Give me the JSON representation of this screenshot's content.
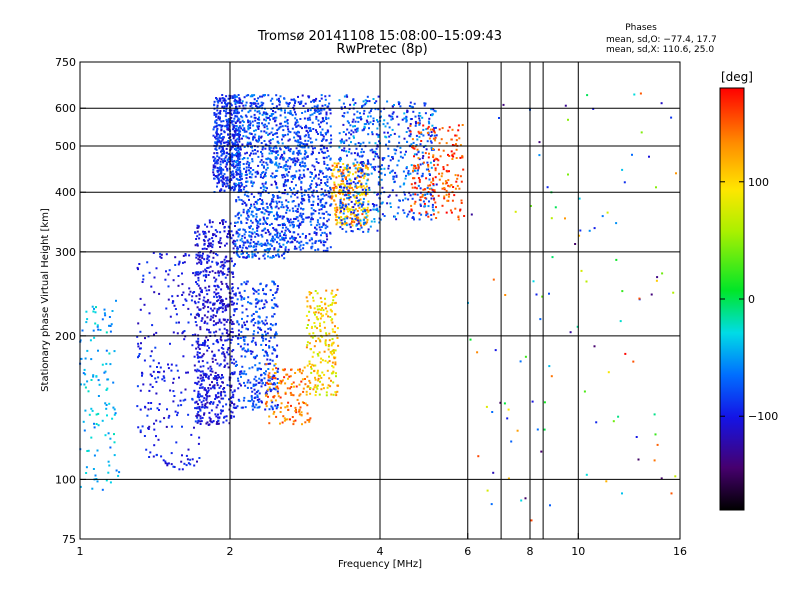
{
  "chart_data": {
    "type": "scatter",
    "title": "Tromsø 20141108 15:08:00–15:09:43",
    "subtitle": "RwPretec (8p)",
    "xlabel": "Frequency [MHz]",
    "ylabel": "Stationary phase Virtual Height [km]",
    "x_scale": "log",
    "y_scale": "log",
    "xlim": [
      1,
      16
    ],
    "ylim": [
      75,
      750
    ],
    "x_ticks": [
      1,
      2,
      4,
      6,
      8,
      10,
      16
    ],
    "x_tick_labels": [
      "1",
      "2",
      "4",
      "6",
      "8",
      "10",
      "16"
    ],
    "y_ticks": [
      75,
      100,
      200,
      300,
      400,
      500,
      600,
      750
    ],
    "y_tick_labels": [
      "75",
      "100",
      "200",
      "300",
      "400",
      "500",
      "600",
      "750"
    ],
    "x_grid": [
      2,
      4,
      6,
      7,
      8,
      8.5,
      10
    ],
    "y_grid": [
      100,
      200,
      300,
      400,
      500,
      600
    ],
    "legend": {
      "title": "Phases",
      "lines": [
        "mean, sd,O: −77.4, 17.7",
        "mean, sd,X: 110.6, 25.0"
      ],
      "placement": "top-right"
    },
    "colorbar": {
      "label": "[deg]",
      "range": [
        -180,
        180
      ],
      "ticks": [
        100,
        0,
        -100
      ],
      "tick_labels": [
        "100",
        "0",
        "−100"
      ],
      "placement": "right"
    },
    "point_clusters": [
      {
        "x_range": [
          1.0,
          1.2
        ],
        "y_range": [
          95,
          240
        ],
        "n": 120,
        "phase": [
          -70,
          -20
        ]
      },
      {
        "x_range": [
          1.3,
          1.75
        ],
        "y_range": [
          105,
          300
        ],
        "n": 260,
        "phase": [
          -120,
          -80
        ]
      },
      {
        "x_range": [
          1.7,
          2.05
        ],
        "y_range": [
          130,
          350
        ],
        "n": 700,
        "phase": [
          -125,
          -85
        ]
      },
      {
        "x_range": [
          1.85,
          2.1
        ],
        "y_range": [
          400,
          640
        ],
        "n": 500,
        "phase": [
          -115,
          -70
        ]
      },
      {
        "x_range": [
          2.05,
          2.65
        ],
        "y_range": [
          290,
          640
        ],
        "n": 900,
        "phase": [
          -110,
          -50
        ]
      },
      {
        "x_range": [
          2.05,
          2.5
        ],
        "y_range": [
          140,
          260
        ],
        "n": 350,
        "phase": [
          -110,
          -60
        ]
      },
      {
        "x_range": [
          2.35,
          2.9
        ],
        "y_range": [
          130,
          175
        ],
        "n": 140,
        "phase": [
          110,
          170
        ]
      },
      {
        "x_range": [
          2.85,
          3.3
        ],
        "y_range": [
          150,
          250
        ],
        "n": 220,
        "phase": [
          60,
          140
        ]
      },
      {
        "x_range": [
          2.65,
          3.2
        ],
        "y_range": [
          300,
          640
        ],
        "n": 550,
        "phase": [
          -110,
          -60
        ]
      },
      {
        "x_range": [
          3.2,
          3.8
        ],
        "y_range": [
          340,
          460
        ],
        "n": 260,
        "phase": [
          80,
          160
        ]
      },
      {
        "x_range": [
          3.3,
          4.0
        ],
        "y_range": [
          330,
          640
        ],
        "n": 350,
        "phase": [
          -110,
          -40
        ]
      },
      {
        "x_range": [
          4.0,
          5.2
        ],
        "y_range": [
          350,
          620
        ],
        "n": 300,
        "phase": [
          -115,
          -40
        ]
      },
      {
        "x_range": [
          4.6,
          5.9
        ],
        "y_range": [
          350,
          560
        ],
        "n": 200,
        "phase": [
          130,
          180
        ]
      },
      {
        "x_range": [
          6.0,
          16.0
        ],
        "y_range": [
          80,
          650
        ],
        "n": 110,
        "phase": [
          -150,
          180
        ]
      }
    ]
  }
}
